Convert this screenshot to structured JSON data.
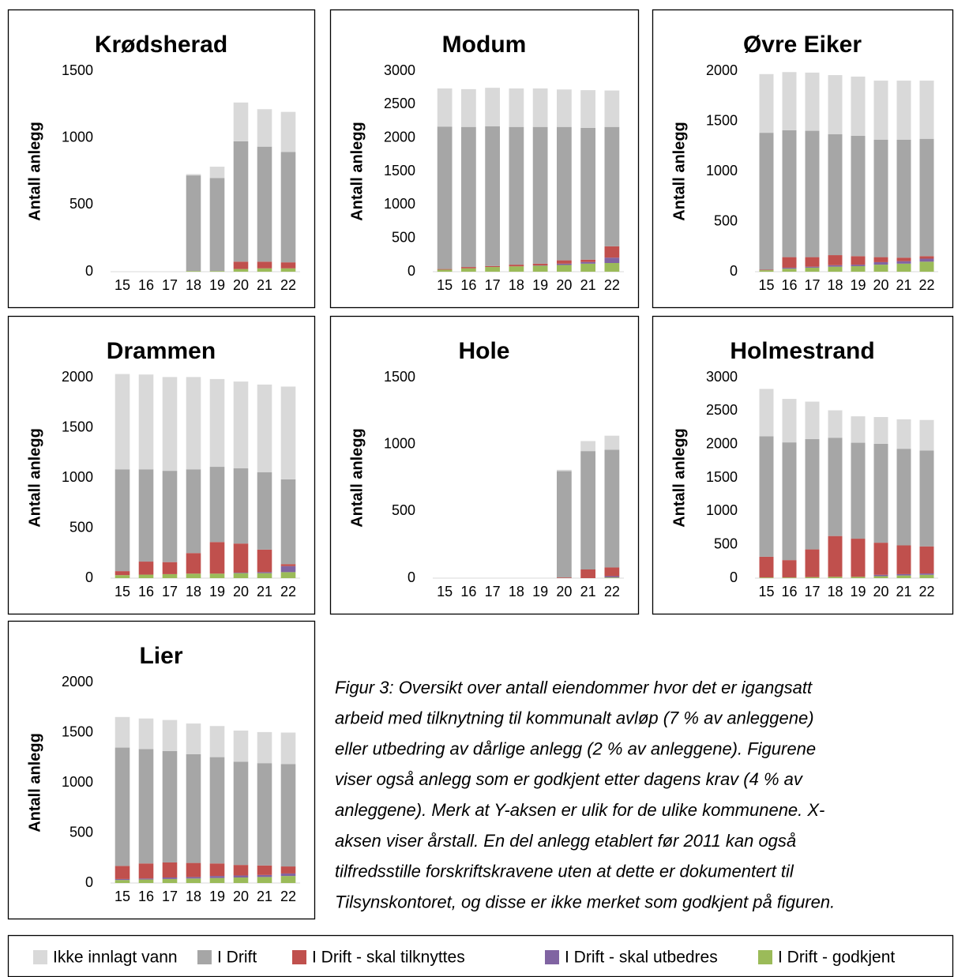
{
  "chart_data": [
    {
      "type": "bar",
      "stacked": true,
      "title": "Krødsherad",
      "ylabel": "Antall anlegg",
      "categories": [
        "15",
        "16",
        "17",
        "18",
        "19",
        "20",
        "21",
        "22"
      ],
      "ylim": [
        0,
        1500
      ],
      "yticks": [
        0,
        500,
        1000,
        1500
      ],
      "series": [
        {
          "values": [
            0,
            0,
            0,
            5,
            5,
            20,
            25,
            25
          ]
        },
        {
          "values": [
            0,
            0,
            0,
            0,
            0,
            0,
            0,
            0
          ]
        },
        {
          "values": [
            0,
            0,
            0,
            0,
            0,
            55,
            50,
            45
          ]
        },
        {
          "values": [
            0,
            0,
            0,
            715,
            695,
            900,
            860,
            825
          ]
        },
        {
          "values": [
            0,
            0,
            0,
            10,
            85,
            290,
            280,
            300
          ]
        }
      ]
    },
    {
      "type": "bar",
      "stacked": true,
      "title": "Modum",
      "ylabel": "Antall anlegg",
      "categories": [
        "15",
        "16",
        "17",
        "18",
        "19",
        "20",
        "21",
        "22"
      ],
      "ylim": [
        0,
        3000
      ],
      "yticks": [
        0,
        500,
        1000,
        1500,
        2000,
        2500,
        3000
      ],
      "series": [
        {
          "values": [
            30,
            50,
            70,
            80,
            90,
            100,
            120,
            130
          ]
        },
        {
          "values": [
            0,
            0,
            0,
            0,
            5,
            20,
            25,
            80
          ]
        },
        {
          "values": [
            10,
            20,
            15,
            25,
            25,
            50,
            35,
            170
          ]
        },
        {
          "values": [
            2130,
            2095,
            2090,
            2060,
            2045,
            1995,
            1970,
            1785
          ]
        },
        {
          "values": [
            570,
            565,
            575,
            575,
            575,
            560,
            565,
            545
          ]
        }
      ]
    },
    {
      "type": "bar",
      "stacked": true,
      "title": "Øvre Eiker",
      "ylabel": "Antall anlegg",
      "categories": [
        "15",
        "16",
        "17",
        "18",
        "19",
        "20",
        "21",
        "22"
      ],
      "ylim": [
        0,
        2000
      ],
      "yticks": [
        0,
        500,
        1000,
        1500,
        2000
      ],
      "series": [
        {
          "values": [
            15,
            30,
            40,
            50,
            55,
            70,
            80,
            100
          ]
        },
        {
          "values": [
            0,
            10,
            10,
            15,
            15,
            25,
            25,
            30
          ]
        },
        {
          "values": [
            5,
            105,
            95,
            100,
            85,
            50,
            35,
            25
          ]
        },
        {
          "values": [
            1365,
            1265,
            1260,
            1205,
            1200,
            1170,
            1175,
            1170
          ]
        },
        {
          "values": [
            585,
            580,
            580,
            590,
            590,
            590,
            590,
            580
          ]
        }
      ]
    },
    {
      "type": "bar",
      "stacked": true,
      "title": "Drammen",
      "ylabel": "Antall anlegg",
      "categories": [
        "15",
        "16",
        "17",
        "18",
        "19",
        "20",
        "21",
        "22"
      ],
      "ylim": [
        0,
        2000
      ],
      "yticks": [
        0,
        500,
        1000,
        1500,
        2000
      ],
      "series": [
        {
          "values": [
            30,
            35,
            40,
            45,
            45,
            50,
            50,
            60
          ]
        },
        {
          "values": [
            0,
            0,
            0,
            0,
            0,
            5,
            10,
            60
          ]
        },
        {
          "values": [
            40,
            130,
            120,
            205,
            315,
            290,
            225,
            20
          ]
        },
        {
          "values": [
            1015,
            920,
            910,
            835,
            750,
            750,
            770,
            845
          ]
        },
        {
          "values": [
            950,
            945,
            935,
            920,
            875,
            865,
            875,
            925
          ]
        }
      ]
    },
    {
      "type": "bar",
      "stacked": true,
      "title": "Hole",
      "ylabel": "Antall anlegg",
      "categories": [
        "15",
        "16",
        "17",
        "18",
        "19",
        "20",
        "21",
        "22"
      ],
      "ylim": [
        0,
        1500
      ],
      "yticks": [
        0,
        500,
        1000,
        1500
      ],
      "series": [
        {
          "values": [
            0,
            0,
            0,
            0,
            0,
            0,
            0,
            5
          ]
        },
        {
          "values": [
            0,
            0,
            0,
            0,
            0,
            0,
            0,
            10
          ]
        },
        {
          "values": [
            0,
            0,
            0,
            0,
            0,
            5,
            65,
            65
          ]
        },
        {
          "values": [
            0,
            0,
            0,
            0,
            0,
            795,
            885,
            880
          ]
        },
        {
          "values": [
            0,
            0,
            0,
            0,
            0,
            10,
            75,
            105
          ]
        }
      ]
    },
    {
      "type": "bar",
      "stacked": true,
      "title": "Holmestrand",
      "ylabel": "Antall anlegg",
      "categories": [
        "15",
        "16",
        "17",
        "18",
        "19",
        "20",
        "21",
        "22"
      ],
      "ylim": [
        0,
        3000
      ],
      "yticks": [
        0,
        500,
        1000,
        1500,
        2000,
        2500,
        3000
      ],
      "series": [
        {
          "values": [
            10,
            10,
            15,
            20,
            20,
            30,
            40,
            50
          ]
        },
        {
          "values": [
            0,
            0,
            0,
            0,
            0,
            20,
            20,
            20
          ]
        },
        {
          "values": [
            310,
            260,
            415,
            610,
            570,
            480,
            430,
            405
          ]
        },
        {
          "values": [
            1800,
            1760,
            1650,
            1470,
            1435,
            1480,
            1445,
            1435
          ]
        },
        {
          "values": [
            710,
            650,
            560,
            410,
            395,
            400,
            440,
            455
          ]
        }
      ]
    },
    {
      "type": "bar",
      "stacked": true,
      "title": "Lier",
      "ylabel": "Antall anlegg",
      "categories": [
        "15",
        "16",
        "17",
        "18",
        "19",
        "20",
        "21",
        "22"
      ],
      "ylim": [
        0,
        2000
      ],
      "yticks": [
        0,
        500,
        1000,
        1500,
        2000
      ],
      "series": [
        {
          "values": [
            30,
            35,
            40,
            45,
            50,
            55,
            60,
            70
          ]
        },
        {
          "values": [
            10,
            10,
            15,
            15,
            20,
            20,
            20,
            25
          ]
        },
        {
          "values": [
            130,
            150,
            150,
            140,
            125,
            105,
            95,
            70
          ]
        },
        {
          "values": [
            1180,
            1140,
            1110,
            1085,
            1060,
            1030,
            1020,
            1020
          ]
        },
        {
          "values": [
            305,
            305,
            310,
            305,
            310,
            310,
            310,
            315
          ]
        }
      ]
    }
  ],
  "legend": {
    "items": [
      {
        "name": "I Drift - godkjent",
        "color": "#9bbb59"
      },
      {
        "name": "I Drift - skal utbedres",
        "color": "#8064a2"
      },
      {
        "name": "I Drift - skal tilknyttes",
        "color": "#c0504d"
      },
      {
        "name": "I Drift",
        "color": "#a6a6a6"
      },
      {
        "name": "Ikke innlagt vann",
        "color": "#d9d9d9"
      }
    ]
  },
  "caption": {
    "lines": [
      "Figur 3: Oversikt over antall eiendommer hvor det er igangsatt",
      "arbeid med tilknytning til kommunalt avløp (7 % av anleggene)",
      "eller utbedring av dårlige anlegg (2 % av anleggene). Figurene",
      "viser også anlegg som er godkjent etter dagens krav (4 % av",
      "anleggene). Merk at Y-aksen er ulik for de ulike kommunene. X-",
      "aksen viser årstall. En del anlegg etablert før 2011 kan også",
      "tilfredsstille forskriftskravene uten at dette er dokumentert til",
      "Tilsynskontoret, og disse er ikke merket som godkjent på figuren."
    ]
  }
}
